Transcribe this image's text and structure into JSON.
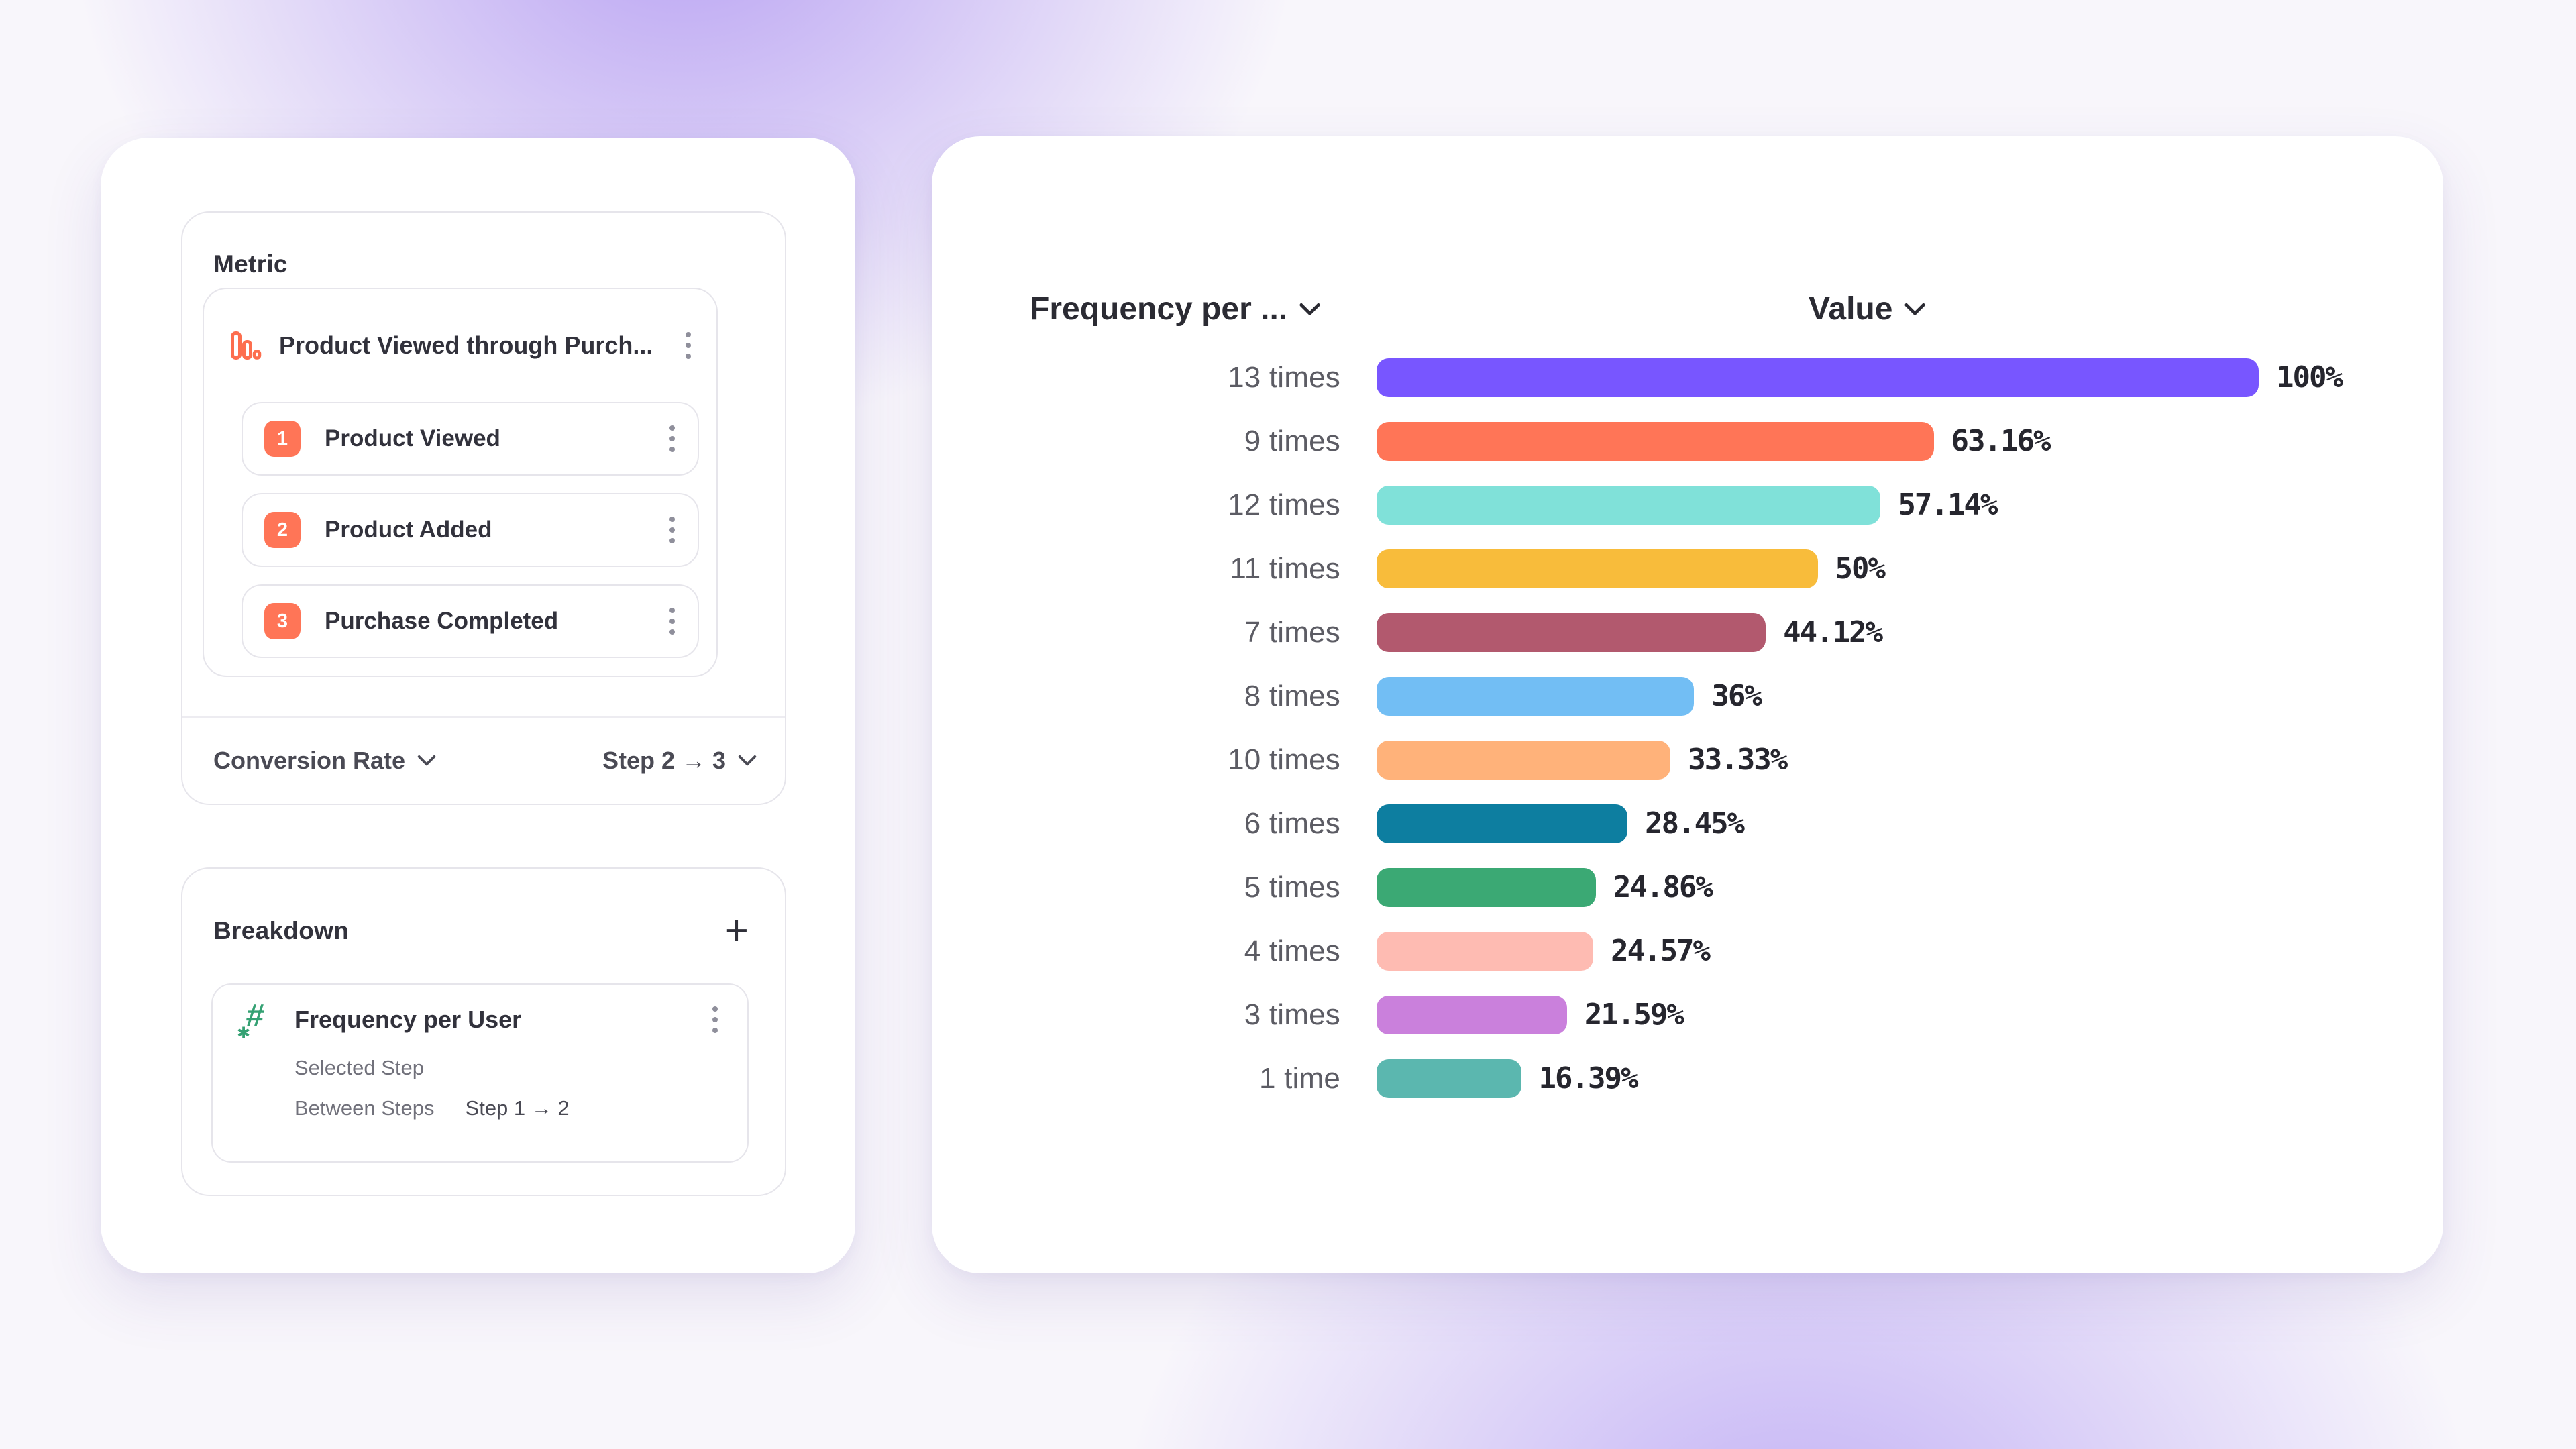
{
  "colors": {
    "accent_coral": "#FF7557",
    "numeric_icon_green": "#34A173",
    "text_dark": "#2B2B33",
    "text_gray": "#5C5C64",
    "card_bg": "#FFFFFF",
    "background_glow": "#8E6AEC"
  },
  "icons": {
    "plus": "+",
    "hash": "#",
    "sparkle": "✱",
    "funnel_metric": "bar-chart-icon",
    "kebab": "vertical-ellipsis-icon",
    "chevron": "chevron-down-icon"
  },
  "left_panel": {
    "metric_section": {
      "title": "Metric",
      "funnel": {
        "name": "Product Viewed through Purch...",
        "steps": [
          {
            "number": "1",
            "label": "Product Viewed"
          },
          {
            "number": "2",
            "label": "Product Added"
          },
          {
            "number": "3",
            "label": "Purchase Completed"
          }
        ]
      },
      "footer": {
        "measure_label": "Conversion Rate",
        "step_range_label": "Step 2 → 3"
      }
    },
    "breakdown_section": {
      "title": "Breakdown",
      "item": {
        "name": "Frequency per User",
        "selected_step_label": "Selected Step",
        "between_steps_label": "Between Steps",
        "between_steps_value": "Step 1 → 2"
      }
    }
  },
  "chart_panel": {
    "column_headers": {
      "category": "Frequency per ...",
      "value": "Value"
    }
  },
  "chart_data": {
    "type": "bar",
    "orientation": "horizontal",
    "title": "",
    "category_axis_label": "Frequency per ...",
    "value_axis_label": "Value",
    "xlim": [
      0,
      100
    ],
    "gridlines": false,
    "legend": false,
    "categories": [
      "13 times",
      "9 times",
      "12 times",
      "11 times",
      "7 times",
      "8 times",
      "10 times",
      "6 times",
      "5 times",
      "4 times",
      "3 times",
      "1 time"
    ],
    "values": [
      100,
      63.16,
      57.14,
      50,
      44.12,
      36,
      33.33,
      28.45,
      24.86,
      24.57,
      21.59,
      16.39
    ],
    "value_labels": [
      "100%",
      "63.16%",
      "57.14%",
      "50%",
      "44.12%",
      "36%",
      "33.33%",
      "28.45%",
      "24.86%",
      "24.57%",
      "21.59%",
      "16.39%"
    ],
    "bar_colors": [
      "#7856FF",
      "#FF7557",
      "#80E1D9",
      "#F8BC3B",
      "#B2596E",
      "#72BEF4",
      "#FFB27A",
      "#0D7EA0",
      "#3BA974",
      "#FEBBB2",
      "#CA80DC",
      "#5BB7AF"
    ]
  }
}
